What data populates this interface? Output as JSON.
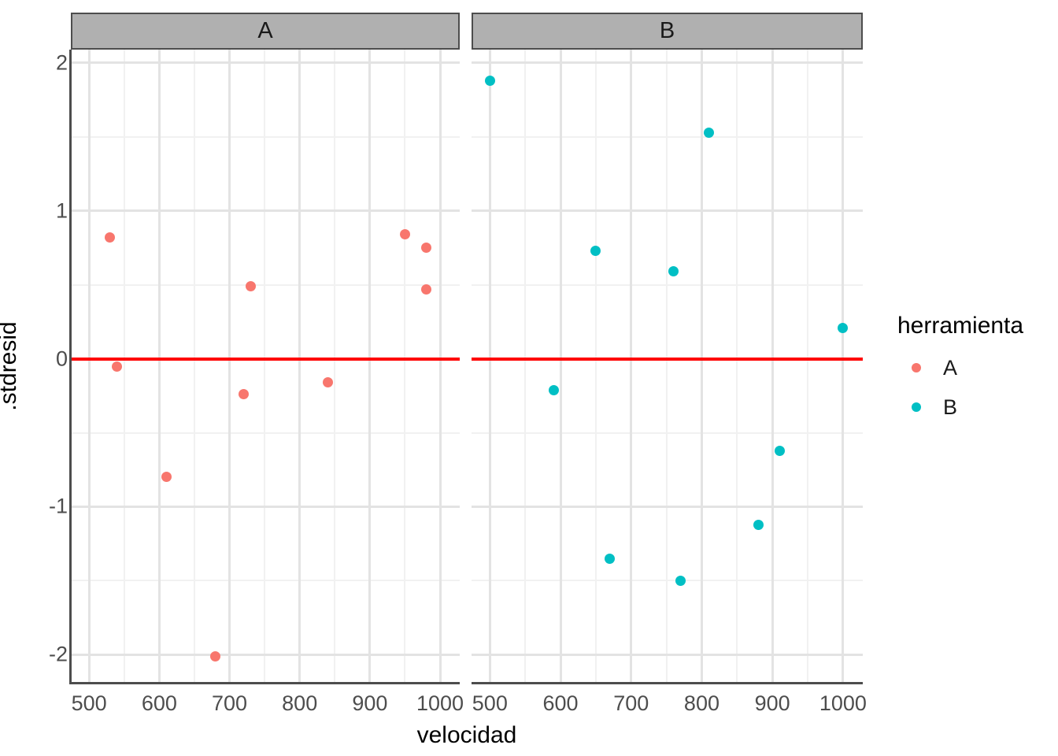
{
  "chart_data": {
    "type": "scatter",
    "title": "",
    "xlabel": "velocidad",
    "ylabel": ".stdresid",
    "facet_labels": [
      "A",
      "B"
    ],
    "x": {
      "ticks": [
        500,
        600,
        700,
        800,
        900,
        1000
      ],
      "minor_ticks": [
        550,
        650,
        750,
        850,
        950
      ],
      "range": [
        474,
        1028
      ]
    },
    "y": {
      "ticks": [
        2,
        1,
        0,
        -1,
        -2
      ],
      "minor_ticks": [
        1.5,
        0.5,
        -0.5,
        -1.5
      ],
      "range": [
        -2.19,
        2.09
      ]
    },
    "grid": "on",
    "legend_position": "right",
    "reference_line": {
      "y": 0,
      "color": "#FF0000"
    },
    "series": [
      {
        "name": "A",
        "color": "#F8766D",
        "facet": "A",
        "points": [
          {
            "velocidad": 530,
            "stdresid": 0.82
          },
          {
            "velocidad": 540,
            "stdresid": -0.05
          },
          {
            "velocidad": 610,
            "stdresid": -0.8
          },
          {
            "velocidad": 680,
            "stdresid": -2.01
          },
          {
            "velocidad": 720,
            "stdresid": -0.24
          },
          {
            "velocidad": 730,
            "stdresid": 0.49
          },
          {
            "velocidad": 840,
            "stdresid": -0.16
          },
          {
            "velocidad": 950,
            "stdresid": 0.84
          },
          {
            "velocidad": 980,
            "stdresid": 0.75
          },
          {
            "velocidad": 980,
            "stdresid": 0.47
          }
        ]
      },
      {
        "name": "B",
        "color": "#00BFC4",
        "facet": "B",
        "points": [
          {
            "velocidad": 500,
            "stdresid": 1.88
          },
          {
            "velocidad": 590,
            "stdresid": -0.21
          },
          {
            "velocidad": 650,
            "stdresid": 0.73
          },
          {
            "velocidad": 670,
            "stdresid": -1.35
          },
          {
            "velocidad": 760,
            "stdresid": 0.59
          },
          {
            "velocidad": 770,
            "stdresid": -1.5
          },
          {
            "velocidad": 810,
            "stdresid": 1.53
          },
          {
            "velocidad": 880,
            "stdresid": -1.12
          },
          {
            "velocidad": 910,
            "stdresid": -0.62
          },
          {
            "velocidad": 1000,
            "stdresid": 0.21
          }
        ]
      }
    ],
    "legend": {
      "title": "herramienta",
      "items": [
        {
          "label": "A",
          "color": "#F8766D"
        },
        {
          "label": "B",
          "color": "#00BFC4"
        }
      ]
    }
  },
  "colors": {
    "background": "#FFFFFF",
    "strip_fill": "#B0B0B0",
    "strip_border": "#4D4D4D",
    "grid_major": "#E3E3E3",
    "grid_minor": "#F1F1F1",
    "axis_line": "#4D4D4D",
    "tick_label": "#4D4D4D",
    "reference_line": "#FF0000",
    "series_a": "#F8766D",
    "series_b": "#00BFC4"
  }
}
